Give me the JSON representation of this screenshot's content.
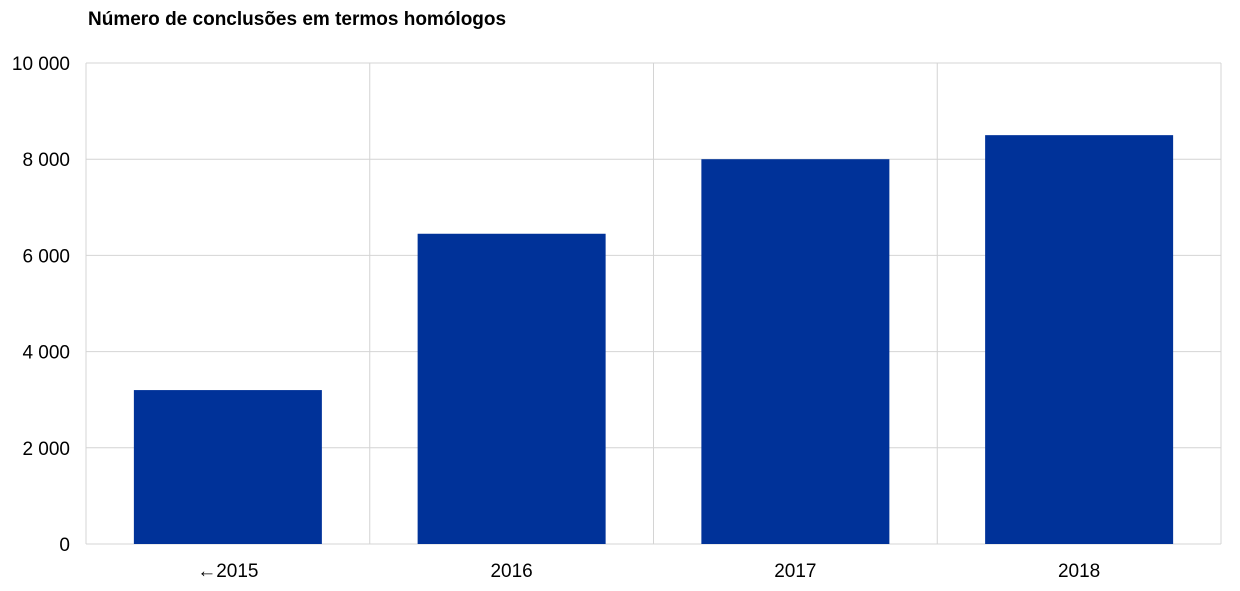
{
  "chart_data": {
    "type": "bar",
    "title": "Número de conclusões em termos homólogos",
    "categories": [
      "←2015",
      "2016",
      "2017",
      "2018"
    ],
    "series": [
      {
        "values": [
          3200,
          6450,
          8000,
          8500
        ]
      }
    ],
    "ylim": [
      0,
      10000
    ],
    "yticks": [
      0,
      2000,
      4000,
      6000,
      8000,
      10000
    ],
    "ytick_labels": [
      "0",
      "2 000",
      "4 000",
      "6 000",
      "8 000",
      "10 000"
    ],
    "xlabel": "",
    "ylabel": "",
    "grid": true,
    "bar_color": "#003299",
    "grid_color": "#d4d4d4"
  }
}
